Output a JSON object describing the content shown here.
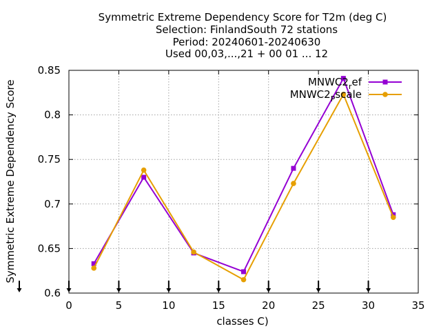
{
  "chart_data": {
    "type": "line",
    "title_lines": [
      "Symmetric Extreme Dependency Score  for T2m (deg C)",
      "Selection: FinlandSouth     72 stations",
      "Period: 20240601-20240630",
      "Used 00,03,...,21 + 00 01 ... 12"
    ],
    "xlabel": "classes C)",
    "ylabel": "Symmetric Extreme Dependency Score",
    "xlim": [
      0,
      35
    ],
    "ylim": [
      0.6,
      0.85
    ],
    "xticks": [
      0,
      5,
      10,
      15,
      20,
      25,
      30,
      35
    ],
    "xtick_labels": [
      "0",
      "5",
      "10",
      "15",
      "20",
      "25",
      "30",
      "35"
    ],
    "yticks": [
      0.6,
      0.65,
      0.7,
      0.75,
      0.8,
      0.85
    ],
    "ytick_labels": [
      "0.6",
      "0.65",
      "0.7",
      "0.75",
      "0.8",
      "0.85"
    ],
    "grid": true,
    "legend_position": "top-right",
    "bottom_markers_x": [
      0,
      5,
      10,
      15,
      20,
      25,
      30
    ],
    "series": [
      {
        "name": "MNWC2_ref",
        "legend_main": "MNWC2",
        "legend_sub": "r",
        "legend_tail": "ef",
        "color": "#9400d3",
        "x": [
          2.5,
          7.5,
          12.5,
          17.5,
          22.5,
          27.5,
          32.5
        ],
        "y": [
          0.633,
          0.73,
          0.645,
          0.624,
          0.74,
          0.841,
          0.688
        ]
      },
      {
        "name": "MNWC2_pscale",
        "legend_main": "MNWC2",
        "legend_sub": "P",
        "legend_tail": "scale",
        "color": "#e69f00",
        "x": [
          2.5,
          7.5,
          12.5,
          17.5,
          22.5,
          27.5,
          32.5
        ],
        "y": [
          0.628,
          0.738,
          0.646,
          0.615,
          0.723,
          0.823,
          0.685
        ]
      }
    ]
  }
}
